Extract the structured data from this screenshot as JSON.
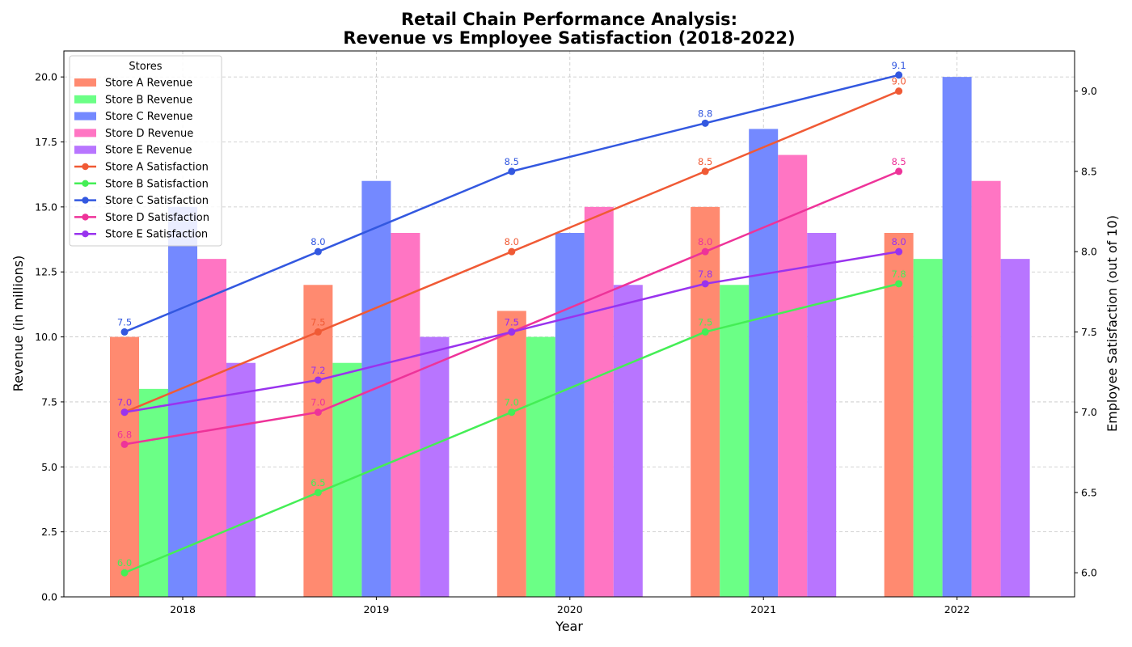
{
  "chart_data": {
    "type": "bar",
    "title": [
      "Retail Chain Performance Analysis:",
      "Revenue vs Employee Satisfaction (2018-2022)"
    ],
    "xlabel": "Year",
    "ylabel": "Revenue (in millions)",
    "y2label": "Employee Satisfaction (out of 10)",
    "categories": [
      "2018",
      "2019",
      "2020",
      "2021",
      "2022"
    ],
    "ylim": [
      0,
      21
    ],
    "y2lim": [
      5.85,
      9.25
    ],
    "yticks": [
      0.0,
      2.5,
      5.0,
      7.5,
      10.0,
      12.5,
      15.0,
      17.5,
      20.0
    ],
    "y2ticks": [
      6.0,
      6.5,
      7.0,
      7.5,
      8.0,
      8.5,
      9.0
    ],
    "grid": true,
    "legend_title": "Stores",
    "legend_position": "top-left",
    "bar_series": [
      {
        "name": "Store A Revenue",
        "color": "#ff8a70",
        "values": [
          10,
          12,
          11,
          15,
          14
        ]
      },
      {
        "name": "Store B Revenue",
        "color": "#6bff86",
        "values": [
          8,
          9,
          10,
          12,
          13
        ]
      },
      {
        "name": "Store C Revenue",
        "color": "#7489ff",
        "values": [
          15,
          16,
          14,
          18,
          20
        ]
      },
      {
        "name": "Store D Revenue",
        "color": "#ff75c3",
        "values": [
          13,
          14,
          15,
          17,
          16
        ]
      },
      {
        "name": "Store E Revenue",
        "color": "#b875ff",
        "values": [
          9,
          10,
          12,
          14,
          13
        ]
      }
    ],
    "line_series": [
      {
        "name": "Store A Satisfaction",
        "color": "#f05a35",
        "values": [
          7.0,
          7.5,
          8.0,
          8.5,
          9.0
        ]
      },
      {
        "name": "Store B Satisfaction",
        "color": "#44ee55",
        "values": [
          6.0,
          6.5,
          7.0,
          7.5,
          7.8
        ]
      },
      {
        "name": "Store C Satisfaction",
        "color": "#3358e0",
        "values": [
          7.5,
          8.0,
          8.5,
          8.8,
          9.1
        ]
      },
      {
        "name": "Store D Satisfaction",
        "color": "#ee3399",
        "values": [
          6.8,
          7.0,
          7.5,
          8.0,
          8.5
        ]
      },
      {
        "name": "Store E Satisfaction",
        "color": "#9933ee",
        "values": [
          7.0,
          7.2,
          7.5,
          7.8,
          8.0
        ]
      }
    ]
  }
}
